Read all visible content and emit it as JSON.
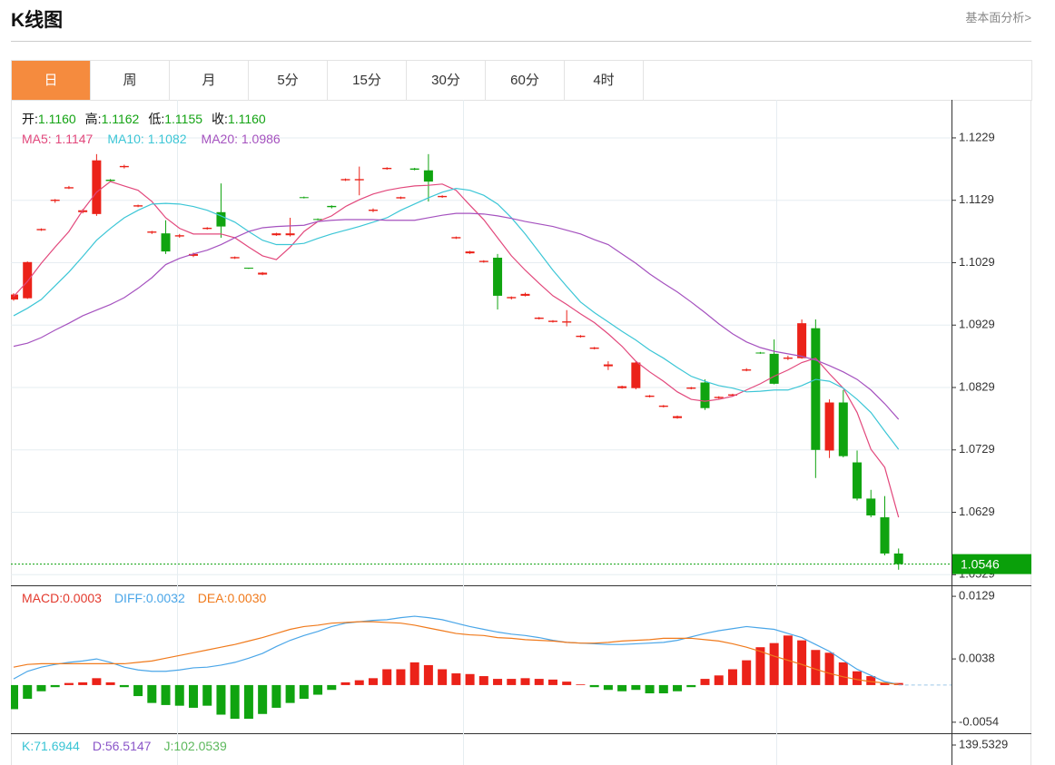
{
  "header": {
    "title": "K线图",
    "link": "基本面分析>"
  },
  "tabs": [
    "日",
    "周",
    "月",
    "5分",
    "15分",
    "30分",
    "60分",
    "4时"
  ],
  "active_tab": 0,
  "chart_data": [
    {
      "type": "candlestick",
      "info": [
        {
          "label": "开:",
          "value": "1.1160"
        },
        {
          "label": "高:",
          "value": "1.1162"
        },
        {
          "label": "低:",
          "value": "1.1155"
        },
        {
          "label": "收:",
          "value": "1.1160"
        }
      ],
      "info_color": "#13a313",
      "up_color": "#eb2219",
      "down_color": "#10a410",
      "ylim": [
        1.0512,
        1.129
      ],
      "yticks": [
        1.0529,
        1.0629,
        1.0729,
        1.0829,
        1.0929,
        1.1029,
        1.1129,
        1.1229
      ],
      "grid": true,
      "price_line": {
        "value": 1.0546,
        "label": "1.0546",
        "color": "#0aa00a"
      },
      "open": [
        1.097,
        1.0972,
        1.1081,
        1.1128,
        1.1148,
        1.111,
        1.1107,
        1.1162,
        1.1182,
        1.1119,
        1.1077,
        1.1076,
        1.1071,
        1.104,
        1.1083,
        1.111,
        1.1036,
        1.1021,
        1.101,
        1.1073,
        1.1073,
        1.1134,
        1.1099,
        1.112,
        1.1161,
        1.1161,
        1.1112,
        1.1179,
        1.1132,
        1.118,
        1.1177,
        1.1134,
        1.1068,
        1.1044,
        1.103,
        1.1037,
        1.0972,
        1.0976,
        1.0939,
        1.0934,
        1.0933,
        1.091,
        1.0891,
        1.0863,
        1.0828,
        1.0828,
        1.0814,
        1.0798,
        1.078,
        1.0827,
        1.0837,
        1.0812,
        1.0816,
        1.0856,
        1.0885,
        1.0883,
        1.0875,
        1.0876,
        1.0924,
        1.0728,
        1.0805,
        1.0709,
        1.0651,
        1.0621,
        1.0563
      ],
      "high": [
        1.098,
        1.1031,
        1.1084,
        1.1131,
        1.1152,
        1.1115,
        1.1203,
        1.1163,
        1.1186,
        1.1122,
        1.108,
        1.1097,
        1.1075,
        1.1045,
        1.1086,
        1.1156,
        1.1039,
        1.1021,
        1.1014,
        1.1077,
        1.1101,
        1.1135,
        1.11,
        1.1121,
        1.1164,
        1.1183,
        1.1116,
        1.1182,
        1.1135,
        1.1181,
        1.1203,
        1.1137,
        1.1071,
        1.1048,
        1.1033,
        1.1043,
        1.0975,
        1.0981,
        1.0942,
        1.0937,
        1.0953,
        1.0913,
        1.0894,
        1.0871,
        1.0832,
        1.0871,
        1.0817,
        1.0801,
        1.0784,
        1.083,
        1.0842,
        1.0815,
        1.0819,
        1.086,
        1.0886,
        1.0906,
        1.088,
        1.0938,
        1.0938,
        1.081,
        1.0825,
        1.0728,
        1.0665,
        1.0655,
        1.0571
      ],
      "low": [
        1.0968,
        1.0971,
        1.108,
        1.1125,
        1.1147,
        1.1108,
        1.1104,
        1.1159,
        1.118,
        1.1118,
        1.1075,
        1.1043,
        1.1069,
        1.1038,
        1.1082,
        1.1069,
        1.1035,
        1.1019,
        1.1009,
        1.1072,
        1.1071,
        1.1132,
        1.1097,
        1.1116,
        1.116,
        1.1137,
        1.111,
        1.1178,
        1.1131,
        1.1177,
        1.1127,
        1.1133,
        1.1067,
        1.1043,
        1.1029,
        1.0954,
        1.097,
        1.0975,
        1.0938,
        1.0933,
        1.0927,
        1.0909,
        1.089,
        1.0857,
        1.0827,
        1.0826,
        1.0813,
        1.0797,
        1.0779,
        1.0826,
        1.0793,
        1.0811,
        1.0815,
        1.0855,
        1.0883,
        1.0834,
        1.0873,
        1.0875,
        1.0684,
        1.0716,
        1.0717,
        1.0648,
        1.0621,
        1.056,
        1.0537
      ],
      "close": [
        1.0978,
        1.103,
        1.1083,
        1.113,
        1.115,
        1.1113,
        1.1193,
        1.116,
        1.1184,
        1.1121,
        1.1079,
        1.1047,
        1.1073,
        1.1043,
        1.1085,
        1.1087,
        1.1038,
        1.102,
        1.1013,
        1.1076,
        1.1076,
        1.1133,
        1.1098,
        1.1118,
        1.1163,
        1.1163,
        1.1114,
        1.1181,
        1.1134,
        1.1178,
        1.1159,
        1.1136,
        1.107,
        1.1047,
        1.1032,
        1.0976,
        1.0974,
        1.0979,
        1.0941,
        1.0936,
        1.0935,
        1.0912,
        1.0893,
        1.0866,
        1.0831,
        1.0869,
        1.0816,
        1.08,
        1.0783,
        1.0829,
        1.0796,
        1.0814,
        1.0818,
        1.0858,
        1.0884,
        1.0835,
        1.0877,
        1.0932,
        1.0729,
        1.0805,
        1.0719,
        1.0651,
        1.0624,
        1.0563,
        1.0546
      ],
      "series": [
        {
          "label": "MA5: 1.1147",
          "color": "#e2487c",
          "values": [
            1.0975,
            1.0999,
            1.1028,
            1.1054,
            1.1079,
            1.1113,
            1.1142,
            1.1159,
            1.1152,
            1.1145,
            1.1127,
            1.1101,
            1.1084,
            1.1075,
            1.1075,
            1.1075,
            1.1069,
            1.1054,
            1.104,
            1.1034,
            1.1054,
            1.1079,
            1.1095,
            1.1104,
            1.1119,
            1.113,
            1.1139,
            1.1145,
            1.1149,
            1.1152,
            1.1153,
            1.1155,
            1.1145,
            1.1121,
            1.1098,
            1.1069,
            1.104,
            1.1017,
            1.0996,
            1.0976,
            1.0962,
            1.0947,
            1.0933,
            1.0915,
            1.0895,
            1.0871,
            1.0854,
            1.0839,
            1.0822,
            1.081,
            1.0807,
            1.081,
            1.0815,
            1.0825,
            1.0835,
            1.0847,
            1.0857,
            1.0869,
            1.0876,
            1.0851,
            1.0828,
            1.0789,
            1.073,
            1.0701,
            1.0621
          ]
        },
        {
          "label": "MA10: 1.1082",
          "color": "#3cc6d6",
          "values": [
            1.0944,
            1.0956,
            1.097,
            1.0992,
            1.1014,
            1.1039,
            1.1065,
            1.1084,
            1.1101,
            1.1113,
            1.1123,
            1.1124,
            1.1123,
            1.1119,
            1.1113,
            1.1104,
            1.1094,
            1.1079,
            1.1065,
            1.1058,
            1.1058,
            1.106,
            1.1068,
            1.1075,
            1.1081,
            1.1087,
            1.1094,
            1.1101,
            1.1113,
            1.1123,
            1.1133,
            1.1142,
            1.1148,
            1.1145,
            1.1137,
            1.1123,
            1.1101,
            1.1075,
            1.1046,
            1.1017,
            1.0991,
            1.0966,
            1.0949,
            1.0934,
            1.0919,
            1.0905,
            1.0889,
            1.0876,
            1.0861,
            1.0847,
            1.0839,
            1.0832,
            1.0828,
            1.0822,
            1.0823,
            1.0825,
            1.0825,
            1.0832,
            1.0842,
            1.0839,
            1.0828,
            1.081,
            1.0789,
            1.0759,
            1.073
          ]
        },
        {
          "label": "MA20: 1.0986",
          "color": "#a552bf",
          "values": [
            1.0895,
            1.09,
            1.0909,
            1.0921,
            1.0932,
            1.0944,
            1.0953,
            1.0962,
            1.0973,
            1.0988,
            1.1005,
            1.1026,
            1.1036,
            1.1043,
            1.1049,
            1.1058,
            1.1069,
            1.1079,
            1.1085,
            1.1087,
            1.1088,
            1.1089,
            1.1095,
            1.1097,
            1.1098,
            1.1098,
            1.1098,
            1.1097,
            1.1097,
            1.1097,
            1.1101,
            1.1105,
            1.1108,
            1.1108,
            1.1107,
            1.1104,
            1.11,
            1.1095,
            1.1091,
            1.1087,
            1.1081,
            1.1075,
            1.1066,
            1.1058,
            1.1043,
            1.1028,
            1.1011,
            1.0996,
            1.0982,
            1.0966,
            1.0949,
            1.0931,
            1.0915,
            1.0902,
            1.0893,
            1.0887,
            1.0883,
            1.0879,
            1.0873,
            1.0864,
            1.0854,
            1.0842,
            1.0825,
            1.0803,
            1.0778
          ]
        }
      ]
    },
    {
      "type": "macd",
      "ylim": [
        -0.007,
        0.0141
      ],
      "yticks": [
        -0.0054,
        0.0038,
        0.0129
      ],
      "up_color": "#eb2219",
      "down_color": "#10a410",
      "bars": {
        "label": "MACD:0.0003",
        "color": "#e33a2e",
        "values": [
          -0.0035,
          -0.002,
          -0.0009,
          -0.0003,
          0.0003,
          0.0004,
          0.001,
          0.0004,
          -0.0003,
          -0.0016,
          -0.0026,
          -0.0029,
          -0.003,
          -0.0033,
          -0.003,
          -0.0043,
          -0.0049,
          -0.0049,
          -0.0042,
          -0.0033,
          -0.0026,
          -0.002,
          -0.0014,
          -0.0007,
          0.0004,
          0.0007,
          0.001,
          0.0023,
          0.0023,
          0.0033,
          0.0029,
          0.0023,
          0.0017,
          0.0016,
          0.0013,
          0.0009,
          0.0009,
          0.001,
          0.0009,
          0.0008,
          0.0005,
          0.0001,
          -0.0003,
          -0.0007,
          -0.0009,
          -0.0007,
          -0.0012,
          -0.0012,
          -0.0009,
          -0.0003,
          0.0009,
          0.0014,
          0.0023,
          0.0036,
          0.0055,
          0.0061,
          0.0072,
          0.0065,
          0.0051,
          0.0047,
          0.0033,
          0.002,
          0.0013,
          0.0004,
          0.0003
        ]
      },
      "series": [
        {
          "label": "DIFF:0.0032",
          "color": "#4aa6e8",
          "values": [
            0.0009,
            0.002,
            0.0026,
            0.003,
            0.0033,
            0.0035,
            0.0038,
            0.0033,
            0.0026,
            0.0022,
            0.002,
            0.002,
            0.0022,
            0.0025,
            0.0026,
            0.0029,
            0.0033,
            0.0039,
            0.0046,
            0.0056,
            0.0065,
            0.0072,
            0.0078,
            0.0085,
            0.009,
            0.0092,
            0.0094,
            0.0095,
            0.0098,
            0.01,
            0.0098,
            0.0095,
            0.009,
            0.0085,
            0.0081,
            0.0077,
            0.0074,
            0.0072,
            0.0069,
            0.0065,
            0.0062,
            0.0061,
            0.006,
            0.0059,
            0.0059,
            0.006,
            0.0061,
            0.0062,
            0.0065,
            0.007,
            0.0075,
            0.0079,
            0.0082,
            0.0085,
            0.0083,
            0.0081,
            0.0075,
            0.0069,
            0.0059,
            0.0049,
            0.0036,
            0.0023,
            0.0014,
            0.0005,
            0.0001
          ]
        },
        {
          "label": "DEA:0.0030",
          "color": "#f07a1c",
          "values": [
            0.0026,
            0.003,
            0.0031,
            0.0031,
            0.0031,
            0.0031,
            0.0031,
            0.0031,
            0.0031,
            0.0033,
            0.0035,
            0.0039,
            0.0043,
            0.0047,
            0.0051,
            0.0055,
            0.0059,
            0.0064,
            0.0069,
            0.0075,
            0.0081,
            0.0085,
            0.0087,
            0.009,
            0.0091,
            0.0092,
            0.0092,
            0.0091,
            0.009,
            0.0087,
            0.0083,
            0.0079,
            0.0075,
            0.0073,
            0.0072,
            0.0069,
            0.0068,
            0.0066,
            0.0065,
            0.0064,
            0.0062,
            0.0061,
            0.0061,
            0.0062,
            0.0064,
            0.0065,
            0.0066,
            0.0068,
            0.0068,
            0.0068,
            0.0066,
            0.0064,
            0.006,
            0.0055,
            0.0049,
            0.0042,
            0.0036,
            0.003,
            0.0023,
            0.0017,
            0.0012,
            0.0008,
            0.0005,
            0.0003,
            0.0001
          ]
        }
      ]
    },
    {
      "type": "kdj",
      "yticks": [
        139.5329
      ],
      "series": [
        {
          "label": "K:71.6944",
          "color": "#38c4d4"
        },
        {
          "label": "D:56.5147",
          "color": "#8a55c8"
        },
        {
          "label": "J:102.0539",
          "color": "#5cb85c"
        }
      ]
    }
  ]
}
